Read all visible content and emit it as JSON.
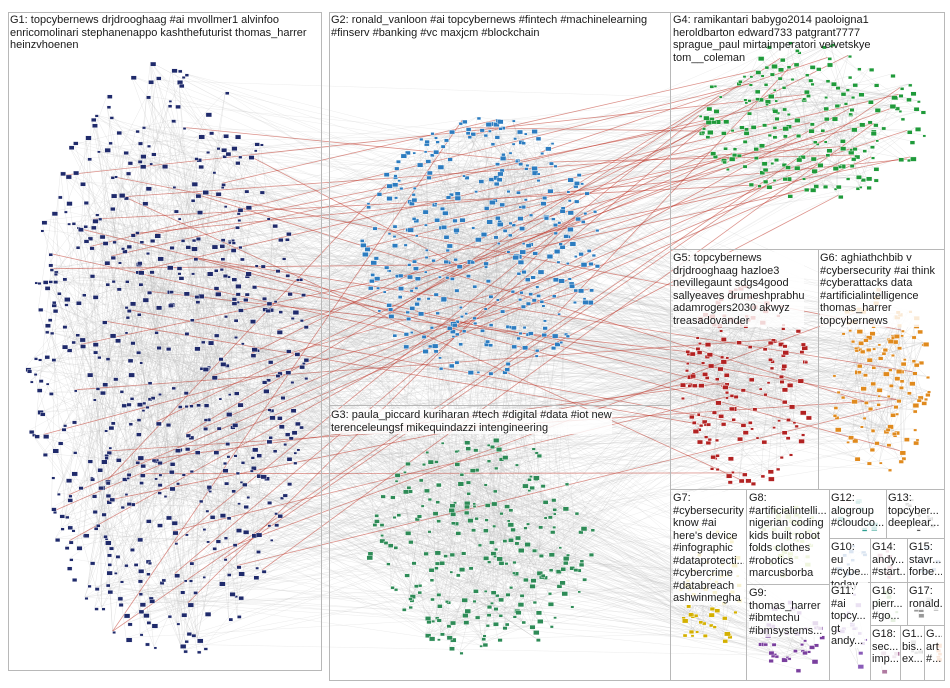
{
  "graph": {
    "colors": {
      "edge": "#b9b9b9",
      "edge_highlight": "#c0392b",
      "node_outline": "#ffffff",
      "pane_border": "#b8b8b8"
    },
    "groups": [
      {
        "id": "G1",
        "color": "#1f2a6b",
        "lines": [
          "G1: topcybernews drjdrooghaag #ai mvollmer1 alvinfoo",
          "enricomolinari stephanenappo kashthefuturist thomas_harrer",
          "heinzvhoenen"
        ]
      },
      {
        "id": "G2",
        "color": "#2c7cc0",
        "lines": [
          "G2: ronald_vanloon #ai topcybernews #fintech #machinelearning",
          "#finserv #banking #vc maxjcm #blockchain"
        ]
      },
      {
        "id": "G3",
        "color": "#2e8b57",
        "lines": [
          "G3: paula_piccard kuriharan #tech #digital #data #iot new",
          "terenceleungsf mikequindazzi intengineering"
        ]
      },
      {
        "id": "G4",
        "color": "#1f9a3a",
        "lines": [
          "G4: ramikantari babygo2014 paoloigna1",
          "heroldbarton edward733 patgrant7777",
          "sprague_paul mirtaimperatori velvetskye",
          "tom__coleman"
        ]
      },
      {
        "id": "G5",
        "color": "#b22222",
        "lines": [
          "G5: topcybernews",
          "drjdrooghaag hazloe3",
          "nevillegaunt sdgs4good",
          "sallyeaves drumeshprabhu",
          "adamrogers2030 akwyz",
          "treasadovander"
        ]
      },
      {
        "id": "G6",
        "color": "#e08a1e",
        "lines": [
          "G6: aghiathchbib v",
          "#cybersecurity #ai think",
          "#cyberattacks data",
          "#artificialintelligence",
          "thomas_harrer",
          "topcybernews"
        ]
      },
      {
        "id": "G7",
        "color": "#d4b000",
        "lines": [
          "G7:",
          "#cybersecurity",
          "know #ai",
          "here's device",
          "#infographic",
          "#dataprotecti...",
          "#cybercrime",
          "#databreach",
          "ashwinmegha"
        ]
      },
      {
        "id": "G8",
        "color": "#a8c64a",
        "lines": [
          "G8:",
          "#artificialintelli...",
          "nigerian coding",
          "kids built robot",
          "folds clothes",
          "#robotics",
          "marcusborba"
        ]
      },
      {
        "id": "G9",
        "color": "#7a3f9e",
        "lines": [
          "G9:",
          "thomas_harrer",
          "#ibmtechu",
          "#ibmsystems..."
        ]
      },
      {
        "id": "G10",
        "color": "#3a6fb0",
        "lines": [
          "G10:",
          "eu",
          "#cybe...",
          "today"
        ]
      },
      {
        "id": "G11",
        "color": "#8a5cb8",
        "lines": [
          "G11:",
          "#ai",
          "topcy...",
          "gt",
          "andy..."
        ]
      },
      {
        "id": "G12",
        "color": "#2a9d8f",
        "lines": [
          "G12:",
          "alogroup",
          "#cloudco..."
        ]
      },
      {
        "id": "G13",
        "color": "#555555",
        "lines": [
          "G13:",
          "topcyber...",
          "deeplear..."
        ]
      },
      {
        "id": "G14",
        "color": "#c06c84",
        "lines": [
          "G14:",
          "andy...",
          "#start..."
        ]
      },
      {
        "id": "G15",
        "color": "#6c8ebf",
        "lines": [
          "G15:",
          "stavr...",
          "forbe..."
        ]
      },
      {
        "id": "G16",
        "color": "#6aa84f",
        "lines": [
          "G16:",
          "pierr...",
          "#go..."
        ]
      },
      {
        "id": "G17",
        "color": "#999999",
        "lines": [
          "G17:",
          "ronald..."
        ]
      },
      {
        "id": "G18",
        "color": "#b07aa1",
        "lines": [
          "G18:",
          "sec...",
          "imp..."
        ]
      },
      {
        "id": "G19",
        "color": "#7f7f7f",
        "lines": [
          "G1...",
          "bis...",
          "ex..."
        ]
      },
      {
        "id": "G20",
        "color": "#e07b39",
        "lines": [
          "G...",
          "art",
          "#..."
        ]
      }
    ]
  }
}
